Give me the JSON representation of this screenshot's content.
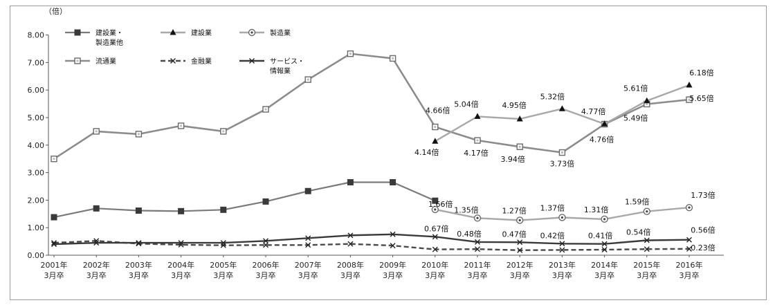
{
  "chart_data": {
    "type": "line",
    "unit_label": "（倍）",
    "ylim": [
      0,
      8
    ],
    "yticks": [
      "0.00",
      "1.00",
      "2.00",
      "3.00",
      "4.00",
      "5.00",
      "6.00",
      "7.00",
      "8.00"
    ],
    "categories": [
      [
        "2001年",
        "3月卒"
      ],
      [
        "2002年",
        "3月卒"
      ],
      [
        "2003年",
        "3月卒"
      ],
      [
        "2004年",
        "3月卒"
      ],
      [
        "2005年",
        "3月卒"
      ],
      [
        "2006年",
        "3月卒"
      ],
      [
        "2007年",
        "3月卒"
      ],
      [
        "2008年",
        "3月卒"
      ],
      [
        "2009年",
        "3月卒"
      ],
      [
        "2010年",
        "3月卒"
      ],
      [
        "2011年",
        "3月卒"
      ],
      [
        "2012年",
        "3月卒"
      ],
      [
        "2013年",
        "3月卒"
      ],
      [
        "2014年",
        "3月卒"
      ],
      [
        "2015年",
        "3月卒"
      ],
      [
        "2016年",
        "3月卒"
      ]
    ],
    "legend_position": "top-left",
    "series": [
      {
        "name": [
          "建設業・",
          "製造業他"
        ],
        "marker": "square-filled",
        "color": "#7a7a7a",
        "width": 2.2,
        "dash": "",
        "values": [
          1.38,
          1.7,
          1.62,
          1.6,
          1.65,
          1.95,
          2.33,
          2.65,
          2.65,
          1.98,
          null,
          null,
          null,
          null,
          null,
          null
        ]
      },
      {
        "name": [
          "建設業"
        ],
        "marker": "triangle",
        "color": "#a8a8a8",
        "width": 2.4,
        "dash": "",
        "values": [
          null,
          null,
          null,
          null,
          null,
          null,
          null,
          null,
          null,
          4.14,
          5.04,
          4.95,
          5.32,
          4.77,
          5.61,
          6.18
        ]
      },
      {
        "name": [
          "製造業"
        ],
        "marker": "circle-dot",
        "color": "#a8a8a8",
        "width": 2.4,
        "dash": "",
        "values": [
          null,
          null,
          null,
          null,
          null,
          null,
          null,
          null,
          null,
          1.66,
          1.35,
          1.27,
          1.37,
          1.31,
          1.59,
          1.73
        ]
      },
      {
        "name": [
          "流通業"
        ],
        "marker": "square-open",
        "color": "#8c8c8c",
        "width": 2.6,
        "dash": "",
        "values": [
          3.5,
          4.5,
          4.4,
          4.7,
          4.5,
          5.3,
          6.38,
          7.32,
          7.15,
          4.66,
          4.17,
          3.94,
          3.73,
          4.76,
          5.49,
          5.65
        ]
      },
      {
        "name": [
          "金融業"
        ],
        "marker": "x",
        "color": "#4a4a4a",
        "width": 2.4,
        "dash": "7 4",
        "values": [
          0.45,
          0.52,
          0.42,
          0.38,
          0.36,
          0.37,
          0.37,
          0.41,
          0.35,
          0.21,
          0.22,
          0.18,
          0.19,
          0.2,
          0.22,
          0.23
        ]
      },
      {
        "name": [
          "サービス・",
          "情報業"
        ],
        "marker": "x",
        "color": "#3a3a3a",
        "width": 2.4,
        "dash": "",
        "values": [
          0.4,
          0.45,
          0.45,
          0.45,
          0.45,
          0.52,
          0.62,
          0.72,
          0.76,
          0.67,
          0.48,
          0.47,
          0.42,
          0.41,
          0.54,
          0.56
        ]
      }
    ],
    "annotations": [
      {
        "text": "4.66倍",
        "series": 3,
        "i": 9,
        "dx": 4,
        "dy": -20
      },
      {
        "text": "4.14倍",
        "series": 1,
        "i": 9,
        "dx": -12,
        "dy": 20
      },
      {
        "text": "5.04倍",
        "series": 1,
        "i": 10,
        "dx": -16,
        "dy": -14
      },
      {
        "text": "4.17倍",
        "series": 3,
        "i": 10,
        "dx": -2,
        "dy": 22
      },
      {
        "text": "4.95倍",
        "series": 1,
        "i": 11,
        "dx": -8,
        "dy": -16
      },
      {
        "text": "3.94倍",
        "series": 3,
        "i": 11,
        "dx": -10,
        "dy": 22
      },
      {
        "text": "5.32倍",
        "series": 1,
        "i": 12,
        "dx": -14,
        "dy": -14
      },
      {
        "text": "3.73倍",
        "series": 3,
        "i": 12,
        "dx": 0,
        "dy": 20
      },
      {
        "text": "4.77倍",
        "series": 1,
        "i": 13,
        "dx": -16,
        "dy": -14
      },
      {
        "text": "4.76倍",
        "series": 3,
        "i": 13,
        "dx": -4,
        "dy": 26
      },
      {
        "text": "5.61倍",
        "series": 1,
        "i": 14,
        "dx": -16,
        "dy": -14
      },
      {
        "text": "5.49倍",
        "series": 3,
        "i": 14,
        "dx": -16,
        "dy": 24
      },
      {
        "text": "6.18倍",
        "series": 1,
        "i": 15,
        "dx": 18,
        "dy": -14
      },
      {
        "text": "5.65倍",
        "series": 3,
        "i": 15,
        "dx": 18,
        "dy": 2
      },
      {
        "text": "1.66倍",
        "series": 2,
        "i": 9,
        "dx": 8,
        "dy": -4
      },
      {
        "text": "1.35倍",
        "series": 2,
        "i": 10,
        "dx": -16,
        "dy": -8
      },
      {
        "text": "1.27倍",
        "series": 2,
        "i": 11,
        "dx": -8,
        "dy": -10
      },
      {
        "text": "1.37倍",
        "series": 2,
        "i": 12,
        "dx": -14,
        "dy": -10
      },
      {
        "text": "1.31倍",
        "series": 2,
        "i": 13,
        "dx": -12,
        "dy": -10
      },
      {
        "text": "1.59倍",
        "series": 2,
        "i": 14,
        "dx": -14,
        "dy": -10
      },
      {
        "text": "1.73倍",
        "series": 2,
        "i": 15,
        "dx": 20,
        "dy": -14
      },
      {
        "text": "0.67倍",
        "series": 5,
        "i": 9,
        "dx": 2,
        "dy": -8
      },
      {
        "text": "0.48倍",
        "series": 5,
        "i": 10,
        "dx": -12,
        "dy": -8
      },
      {
        "text": "0.47倍",
        "series": 5,
        "i": 11,
        "dx": -8,
        "dy": -8
      },
      {
        "text": "0.42倍",
        "series": 5,
        "i": 12,
        "dx": -14,
        "dy": -8
      },
      {
        "text": "0.41倍",
        "series": 5,
        "i": 13,
        "dx": -6,
        "dy": -8
      },
      {
        "text": "0.54倍",
        "series": 5,
        "i": 14,
        "dx": -12,
        "dy": -8
      },
      {
        "text": "0.56倍",
        "series": 5,
        "i": 15,
        "dx": 20,
        "dy": -10
      },
      {
        "text": "0.23倍",
        "series": 4,
        "i": 15,
        "dx": 20,
        "dy": 2
      }
    ]
  }
}
